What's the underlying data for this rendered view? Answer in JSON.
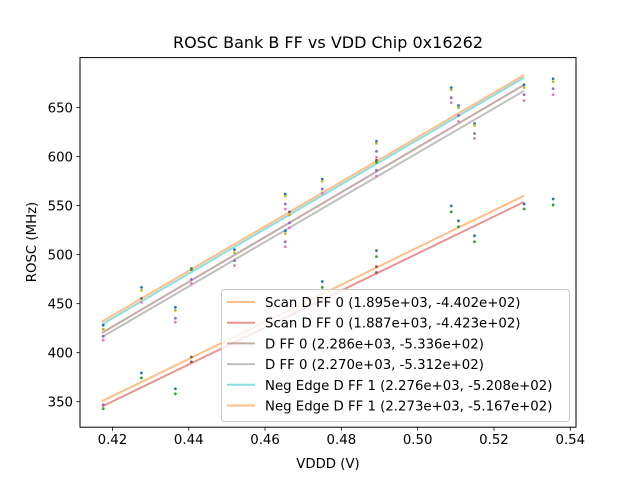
{
  "chart_data": {
    "type": "scatter",
    "title": "ROSC Bank B FF vs VDD Chip 0x16262",
    "xlabel": "VDDD (V)",
    "ylabel": "ROSC (MHz)",
    "xlim": [
      0.4115,
      0.5415
    ],
    "ylim": [
      324,
      701
    ],
    "xticks": [
      0.42,
      0.44,
      0.46,
      0.48,
      0.5,
      0.52,
      0.54
    ],
    "xtick_labels": [
      "0.42",
      "0.44",
      "0.46",
      "0.48",
      "0.50",
      "0.52",
      "0.54"
    ],
    "yticks": [
      350,
      400,
      450,
      500,
      550,
      600,
      650
    ],
    "ytick_labels": [
      "350",
      "400",
      "450",
      "500",
      "550",
      "600",
      "650"
    ],
    "grid": false,
    "legend_position": "lower-right",
    "fit_range": [
      0.4172,
      0.5279
    ],
    "fits": [
      {
        "name": "Scan D FF 0 (1.895e+03, -4.402e+02)",
        "slope": 1895,
        "intercept": -440.2,
        "color": "#ff7f0e"
      },
      {
        "name": "Scan D FF 0 (1.887e+03, -4.423e+02)",
        "slope": 1887,
        "intercept": -442.3,
        "color": "#d62728"
      },
      {
        "name": "D FF 0 (2.286e+03, -5.336e+02)",
        "slope": 2286,
        "intercept": -533.6,
        "color": "#8c564b"
      },
      {
        "name": "D FF 0 (2.270e+03, -5.312e+02)",
        "slope": 2270,
        "intercept": -531.2,
        "color": "#7f7f7f"
      },
      {
        "name": "Neg Edge D FF 1 (2.276e+03, -5.208e+02)",
        "slope": 2276,
        "intercept": -520.8,
        "color": "#17becf"
      },
      {
        "name": "Neg Edge D FF 1 (2.273e+03, -5.167e+02)",
        "slope": 2273,
        "intercept": -516.7,
        "color": "#ff7f0e"
      }
    ],
    "points": [
      {
        "x": 0.4176,
        "y": 428.0,
        "color": "#1f77b4"
      },
      {
        "x": 0.4176,
        "y": 424.0,
        "color": "#bcbd22"
      },
      {
        "x": 0.4176,
        "y": 416.9,
        "color": "#9467bd"
      },
      {
        "x": 0.4176,
        "y": 412.8,
        "color": "#e377c2"
      },
      {
        "x": 0.4176,
        "y": 346.9,
        "color": "#9467bd"
      },
      {
        "x": 0.4176,
        "y": 342.9,
        "color": "#2ca02c"
      },
      {
        "x": 0.4276,
        "y": 466.6,
        "color": "#1f77b4"
      },
      {
        "x": 0.4276,
        "y": 463.5,
        "color": "#bcbd22"
      },
      {
        "x": 0.4276,
        "y": 455.4,
        "color": "#8c564b"
      },
      {
        "x": 0.4276,
        "y": 451.4,
        "color": "#e377c2"
      },
      {
        "x": 0.4276,
        "y": 379.4,
        "color": "#1f77b4"
      },
      {
        "x": 0.4276,
        "y": 374.3,
        "color": "#2ca02c"
      },
      {
        "x": 0.4365,
        "y": 446.3,
        "color": "#1f77b4"
      },
      {
        "x": 0.4365,
        "y": 443.2,
        "color": "#bcbd22"
      },
      {
        "x": 0.4365,
        "y": 435.1,
        "color": "#9467bd"
      },
      {
        "x": 0.4365,
        "y": 431.1,
        "color": "#e377c2"
      },
      {
        "x": 0.4365,
        "y": 363.2,
        "color": "#1f77b4"
      },
      {
        "x": 0.4365,
        "y": 358.1,
        "color": "#2ca02c"
      },
      {
        "x": 0.4407,
        "y": 485.8,
        "color": "#8c564b"
      },
      {
        "x": 0.4407,
        "y": 484.8,
        "color": "#2ca02c"
      },
      {
        "x": 0.4407,
        "y": 474.7,
        "color": "#9467bd"
      },
      {
        "x": 0.4407,
        "y": 470.6,
        "color": "#e377c2"
      },
      {
        "x": 0.4407,
        "y": 395.6,
        "color": "#8c564b"
      },
      {
        "x": 0.4407,
        "y": 390.6,
        "color": "#8c564b"
      },
      {
        "x": 0.452,
        "y": 505.1,
        "color": "#1f77b4"
      },
      {
        "x": 0.452,
        "y": 502.0,
        "color": "#bcbd22"
      },
      {
        "x": 0.452,
        "y": 493.9,
        "color": "#9467bd"
      },
      {
        "x": 0.452,
        "y": 488.9,
        "color": "#e377c2"
      },
      {
        "x": 0.4653,
        "y": 561.8,
        "color": "#1f77b4"
      },
      {
        "x": 0.4653,
        "y": 559.8,
        "color": "#bcbd22"
      },
      {
        "x": 0.4653,
        "y": 551.7,
        "color": "#9467bd"
      },
      {
        "x": 0.4653,
        "y": 546.6,
        "color": "#e377c2"
      },
      {
        "x": 0.4653,
        "y": 524.3,
        "color": "#1f77b4"
      },
      {
        "x": 0.4653,
        "y": 521.3,
        "color": "#bcbd22"
      },
      {
        "x": 0.4653,
        "y": 513.2,
        "color": "#9467bd"
      },
      {
        "x": 0.4653,
        "y": 508.1,
        "color": "#e377c2"
      },
      {
        "x": 0.4664,
        "y": 543.6,
        "color": "#8c564b"
      },
      {
        "x": 0.4664,
        "y": 540.5,
        "color": "#bcbd22"
      },
      {
        "x": 0.4664,
        "y": 532.4,
        "color": "#9467bd"
      },
      {
        "x": 0.4664,
        "y": 527.4,
        "color": "#e377c2"
      },
      {
        "x": 0.475,
        "y": 577.0,
        "color": "#1f77b4"
      },
      {
        "x": 0.475,
        "y": 575.0,
        "color": "#bcbd22"
      },
      {
        "x": 0.475,
        "y": 566.9,
        "color": "#9467bd"
      },
      {
        "x": 0.475,
        "y": 562.8,
        "color": "#e377c2"
      },
      {
        "x": 0.475,
        "y": 472.6,
        "color": "#1f77b4"
      },
      {
        "x": 0.475,
        "y": 466.6,
        "color": "#2ca02c"
      },
      {
        "x": 0.4892,
        "y": 615.5,
        "color": "#1f77b4"
      },
      {
        "x": 0.4892,
        "y": 613.5,
        "color": "#bcbd22"
      },
      {
        "x": 0.4892,
        "y": 605.4,
        "color": "#9467bd"
      },
      {
        "x": 0.4892,
        "y": 599.3,
        "color": "#e377c2"
      },
      {
        "x": 0.4892,
        "y": 596.3,
        "color": "#8c564b"
      },
      {
        "x": 0.4892,
        "y": 594.3,
        "color": "#2ca02c"
      },
      {
        "x": 0.4892,
        "y": 586.1,
        "color": "#9467bd"
      },
      {
        "x": 0.4892,
        "y": 580.1,
        "color": "#e377c2"
      },
      {
        "x": 0.4892,
        "y": 504.1,
        "color": "#1f77b4"
      },
      {
        "x": 0.4892,
        "y": 498.0,
        "color": "#2ca02c"
      },
      {
        "x": 0.4892,
        "y": 487.8,
        "color": "#8c564b"
      },
      {
        "x": 0.4892,
        "y": 481.8,
        "color": "#8c564b"
      },
      {
        "x": 0.5088,
        "y": 670.3,
        "color": "#1f77b4"
      },
      {
        "x": 0.5088,
        "y": 668.2,
        "color": "#bcbd22"
      },
      {
        "x": 0.5088,
        "y": 660.1,
        "color": "#9467bd"
      },
      {
        "x": 0.5088,
        "y": 655.1,
        "color": "#e377c2"
      },
      {
        "x": 0.5088,
        "y": 549.7,
        "color": "#1f77b4"
      },
      {
        "x": 0.5088,
        "y": 543.6,
        "color": "#2ca02c"
      },
      {
        "x": 0.5107,
        "y": 652.0,
        "color": "#1f77b4"
      },
      {
        "x": 0.5107,
        "y": 650.0,
        "color": "#bcbd22"
      },
      {
        "x": 0.5107,
        "y": 641.9,
        "color": "#9467bd"
      },
      {
        "x": 0.5107,
        "y": 635.8,
        "color": "#e377c2"
      },
      {
        "x": 0.5107,
        "y": 534.5,
        "color": "#1f77b4"
      },
      {
        "x": 0.5107,
        "y": 528.4,
        "color": "#2ca02c"
      },
      {
        "x": 0.5149,
        "y": 633.8,
        "color": "#1f77b4"
      },
      {
        "x": 0.5149,
        "y": 631.8,
        "color": "#bcbd22"
      },
      {
        "x": 0.5149,
        "y": 623.6,
        "color": "#9467bd"
      },
      {
        "x": 0.5149,
        "y": 618.6,
        "color": "#e377c2"
      },
      {
        "x": 0.5149,
        "y": 519.3,
        "color": "#1f77b4"
      },
      {
        "x": 0.5149,
        "y": 513.2,
        "color": "#2ca02c"
      },
      {
        "x": 0.5279,
        "y": 673.3,
        "color": "#1f77b4"
      },
      {
        "x": 0.5279,
        "y": 670.3,
        "color": "#bcbd22"
      },
      {
        "x": 0.5279,
        "y": 663.2,
        "color": "#9467bd"
      },
      {
        "x": 0.5279,
        "y": 657.1,
        "color": "#e377c2"
      },
      {
        "x": 0.5279,
        "y": 551.7,
        "color": "#1f77b4"
      },
      {
        "x": 0.5279,
        "y": 546.6,
        "color": "#2ca02c"
      },
      {
        "x": 0.5355,
        "y": 679.4,
        "color": "#1f77b4"
      },
      {
        "x": 0.5355,
        "y": 676.4,
        "color": "#bcbd22"
      },
      {
        "x": 0.5355,
        "y": 669.3,
        "color": "#9467bd"
      },
      {
        "x": 0.5355,
        "y": 663.2,
        "color": "#e377c2"
      },
      {
        "x": 0.5355,
        "y": 556.8,
        "color": "#1f77b4"
      },
      {
        "x": 0.5355,
        "y": 550.7,
        "color": "#2ca02c"
      }
    ]
  }
}
